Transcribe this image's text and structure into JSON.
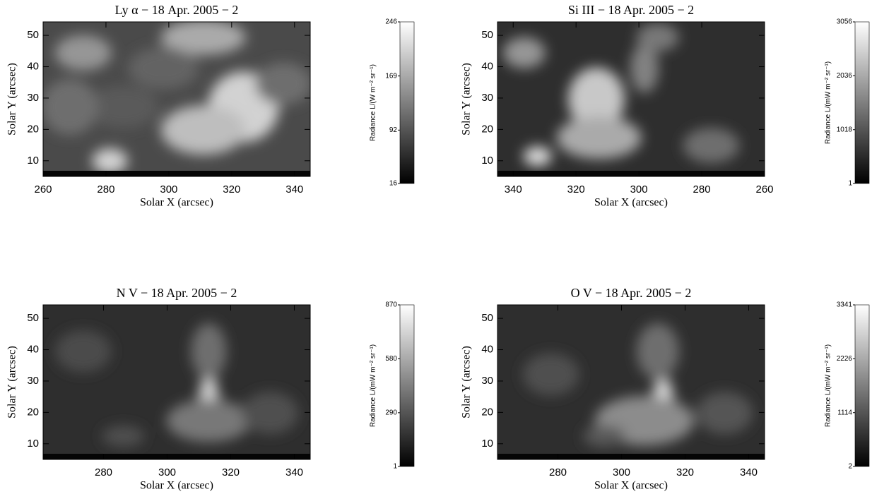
{
  "chart_data": [
    {
      "type": "image",
      "title": "Ly α − 18 Apr. 2005 − 2",
      "x_label": "Solar X (arcsec)",
      "y_label": "Solar Y (arcsec)",
      "xlim": [
        260,
        345
      ],
      "xticks": [
        260,
        280,
        300,
        320,
        340
      ],
      "ylim": [
        5,
        54.3
      ],
      "yticks": [
        10,
        20,
        30,
        40,
        50
      ],
      "colorbar": {
        "label": "Radiance L/(W m⁻² sr⁻¹)",
        "lim": [
          16,
          246
        ],
        "ticks": [
          16,
          92,
          169,
          246
        ]
      }
    },
    {
      "type": "image",
      "title": "Si III − 18 Apr. 2005 − 2",
      "x_label": "Solar X (arcsec)",
      "y_label": "Solar Y (arcsec)",
      "xlim": [
        345,
        260
      ],
      "xticks": [
        340,
        320,
        300,
        280,
        260
      ],
      "ylim": [
        5,
        54.3
      ],
      "yticks": [
        10,
        20,
        30,
        40,
        50
      ],
      "colorbar": {
        "label": "Radiance L/(mW m⁻² sr⁻¹)",
        "lim": [
          1,
          3056
        ],
        "ticks": [
          1,
          1018,
          2036,
          3056
        ]
      }
    },
    {
      "type": "image",
      "title": "N V − 18 Apr. 2005 − 2",
      "x_label": "Solar X (arcsec)",
      "y_label": "Solar Y (arcsec)",
      "xlim": [
        261,
        345
      ],
      "xticks": [
        280,
        300,
        320,
        340
      ],
      "ylim": [
        5,
        54.3
      ],
      "yticks": [
        10,
        20,
        30,
        40,
        50
      ],
      "colorbar": {
        "label": "Radiance L/(mW m⁻² sr⁻¹)",
        "lim": [
          1,
          870
        ],
        "ticks": [
          1,
          290,
          580,
          870
        ]
      }
    },
    {
      "type": "image",
      "title": "O V − 18 Apr. 2005 − 2",
      "x_label": "Solar X (arcsec)",
      "y_label": "Solar Y (arcsec)",
      "xlim": [
        261,
        345
      ],
      "xticks": [
        280,
        300,
        320,
        340
      ],
      "ylim": [
        5,
        54.3
      ],
      "yticks": [
        10,
        20,
        30,
        40,
        50
      ],
      "colorbar": {
        "label": "Radiance L/(mW m⁻² sr⁻¹)",
        "lim": [
          2,
          3341
        ],
        "ticks": [
          2,
          1114,
          2226,
          3341
        ]
      }
    }
  ]
}
